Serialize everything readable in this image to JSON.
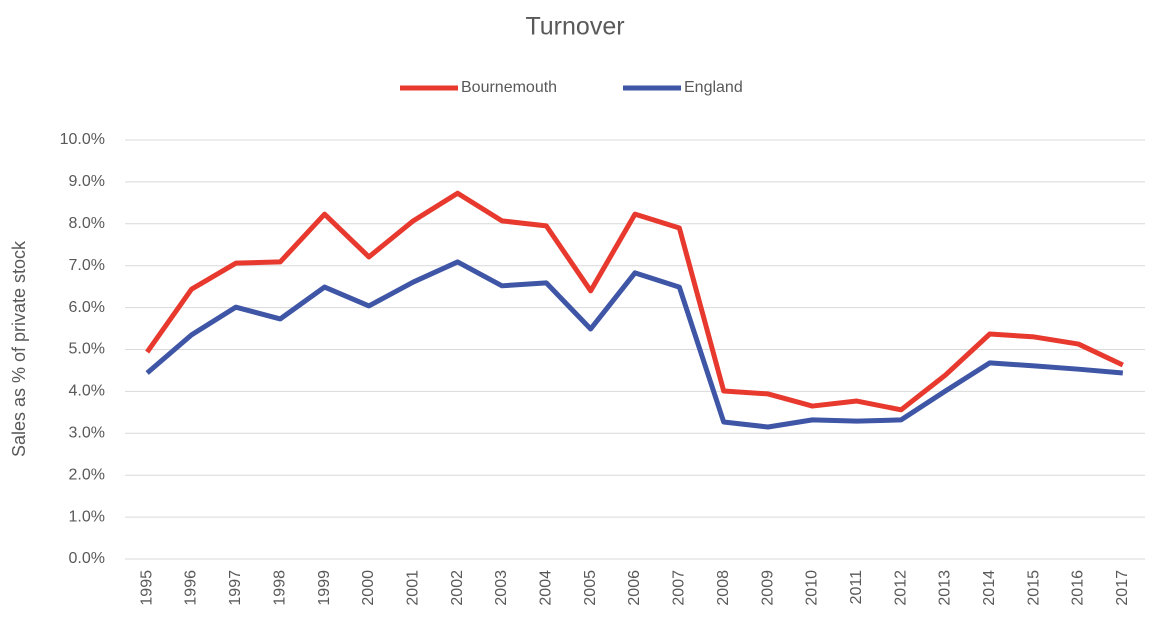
{
  "chart_data": {
    "type": "line",
    "title": "Turnover",
    "y_label": "Sales as % of private stock",
    "categories": [
      "1995",
      "1996",
      "1997",
      "1998",
      "1999",
      "2000",
      "2001",
      "2002",
      "2003",
      "2004",
      "2005",
      "2006",
      "2007",
      "2008",
      "2009",
      "2010",
      "2011",
      "2012",
      "2013",
      "2014",
      "2015",
      "2016",
      "2017"
    ],
    "series": [
      {
        "name": "Bournemouth",
        "color": "#e8392e",
        "values": [
          4.94,
          6.44,
          7.06,
          7.09,
          8.23,
          7.21,
          8.07,
          8.73,
          8.07,
          7.95,
          6.4,
          8.23,
          7.9,
          4.01,
          3.94,
          3.65,
          3.77,
          3.56,
          4.39,
          5.37,
          5.3,
          5.13,
          4.63
        ]
      },
      {
        "name": "England",
        "color": "#3f55a5",
        "values": [
          4.44,
          5.35,
          6.01,
          5.73,
          6.49,
          6.04,
          6.61,
          7.09,
          6.52,
          6.59,
          5.49,
          6.83,
          6.49,
          3.27,
          3.15,
          3.32,
          3.29,
          3.32,
          4.01,
          4.68,
          4.61,
          4.53,
          4.44
        ]
      }
    ],
    "ylim": [
      0,
      10
    ],
    "yticks": [
      {
        "value": 0,
        "label": "0.0%"
      },
      {
        "value": 1,
        "label": "1.0%"
      },
      {
        "value": 2,
        "label": "2.0%"
      },
      {
        "value": 3,
        "label": "3.0%"
      },
      {
        "value": 4,
        "label": "4.0%"
      },
      {
        "value": 5,
        "label": "5.0%"
      },
      {
        "value": 6,
        "label": "6.0%"
      },
      {
        "value": 7,
        "label": "7.0%"
      },
      {
        "value": 8,
        "label": "8.0%"
      },
      {
        "value": 9,
        "label": "9.0%"
      },
      {
        "value": 10,
        "label": "10.0%"
      }
    ],
    "grid": true,
    "legend": "top"
  }
}
